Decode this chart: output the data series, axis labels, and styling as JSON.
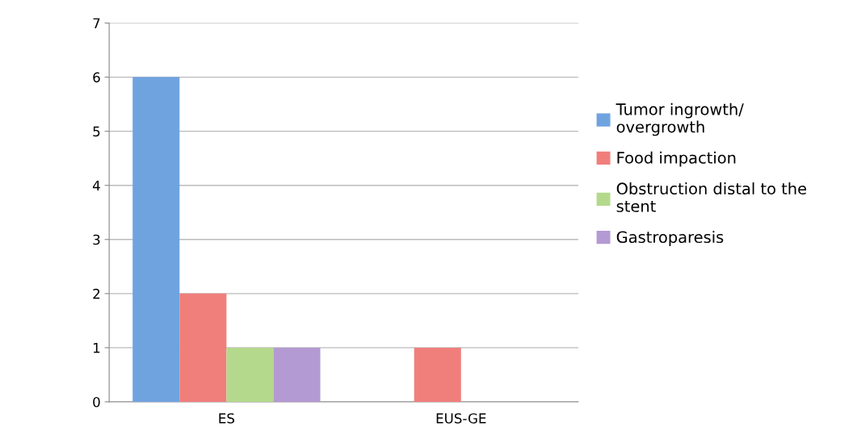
{
  "chart_data": {
    "type": "bar",
    "categories": [
      "ES",
      "EUS-GE"
    ],
    "series": [
      {
        "name": "Tumor ingrowth/\novergrowth",
        "color": "#6fa3e0",
        "values": [
          6,
          0
        ]
      },
      {
        "name": "Food impaction",
        "color": "#f07f7c",
        "values": [
          2,
          1
        ]
      },
      {
        "name": "Obstruction distal to the\nstent",
        "color": "#b4d98c",
        "values": [
          1,
          0
        ]
      },
      {
        "name": "Gastroparesis",
        "color": "#b49ad2",
        "values": [
          1,
          0
        ]
      }
    ],
    "ylim": [
      0,
      7
    ],
    "yticks": [
      0,
      1,
      2,
      3,
      4,
      5,
      6,
      7
    ],
    "grid": "y",
    "legend": "right"
  }
}
